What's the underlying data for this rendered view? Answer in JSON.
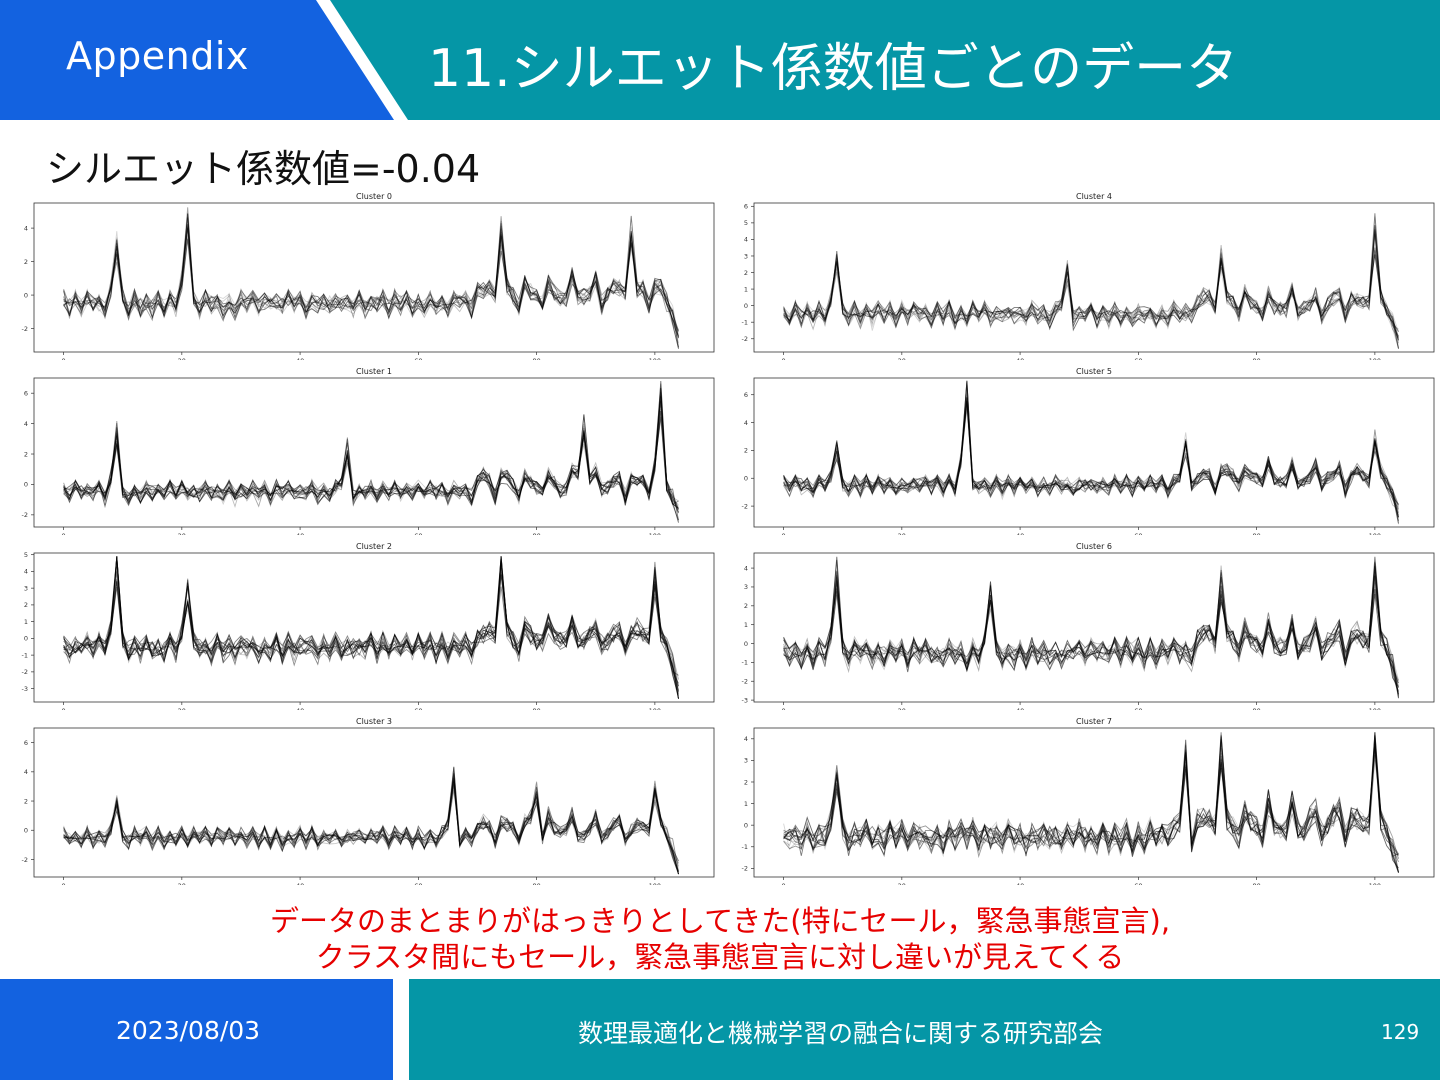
{
  "header": {
    "section": "Appendix",
    "title": "11.シルエット係数値ごとのデータ",
    "left_color": "#1362e0",
    "right_color": "#0596a6"
  },
  "subtitle": "シルエット係数値=-0.04",
  "note": {
    "line1": "データのまとまりがはっきりとしてきた(特にセール，緊急事態宣言),",
    "line2": "クラスタ間にもセール，緊急事態宣言に対し違いが見えてくる",
    "color": "#e60000"
  },
  "footer": {
    "date": "2023/08/03",
    "organization": "数理最適化と機械学習の融合に関する研究部会",
    "page": "129"
  },
  "chart_data": [
    {
      "type": "line",
      "title": "Cluster 0",
      "x_ticks": [
        0,
        20,
        40,
        60,
        80,
        100
      ],
      "y_ticks": [
        -2,
        0,
        2,
        4
      ],
      "xlim": [
        -5,
        110
      ],
      "ylim": [
        -3.4,
        5.5
      ],
      "line_color": "#000000",
      "series_count": 15,
      "points_per_series": 105,
      "spikes": [
        {
          "x": 9,
          "y": 3
        },
        {
          "x": 21,
          "y": 4.2
        },
        {
          "x": 74,
          "y": 3
        },
        {
          "x": 96,
          "y": 3
        },
        {
          "x": 104,
          "y": -2.8
        }
      ],
      "noise": 0.5
    },
    {
      "type": "line",
      "title": "Cluster 4",
      "x_ticks": [
        0,
        20,
        40,
        60,
        80,
        100
      ],
      "y_ticks": [
        -2,
        -1,
        0,
        1,
        2,
        3,
        4,
        5,
        6
      ],
      "xlim": [
        -5,
        110
      ],
      "ylim": [
        -2.8,
        6.2
      ],
      "line_color": "#000000",
      "series_count": 15,
      "points_per_series": 105,
      "spikes": [
        {
          "x": 9,
          "y": 2.8
        },
        {
          "x": 48,
          "y": 2
        },
        {
          "x": 74,
          "y": 2
        },
        {
          "x": 100,
          "y": 3.5
        },
        {
          "x": 104,
          "y": -2.2
        }
      ],
      "noise": 0.45
    },
    {
      "type": "line",
      "title": "Cluster 1",
      "x_ticks": [
        0,
        20,
        40,
        60,
        80,
        100
      ],
      "y_ticks": [
        -2,
        0,
        2,
        4,
        6
      ],
      "xlim": [
        -5,
        110
      ],
      "ylim": [
        -2.8,
        7
      ],
      "line_color": "#000000",
      "series_count": 15,
      "points_per_series": 105,
      "spikes": [
        {
          "x": 9,
          "y": 3.2
        },
        {
          "x": 48,
          "y": 2.2
        },
        {
          "x": 88,
          "y": 3.5
        },
        {
          "x": 101,
          "y": 4.5
        },
        {
          "x": 104,
          "y": -1.8
        }
      ],
      "noise": 0.45
    },
    {
      "type": "line",
      "title": "Cluster 5",
      "x_ticks": [
        0,
        20,
        40,
        60,
        80,
        100
      ],
      "y_ticks": [
        -2,
        0,
        2,
        4,
        6
      ],
      "xlim": [
        -5,
        110
      ],
      "ylim": [
        -3.5,
        7.2
      ],
      "line_color": "#000000",
      "series_count": 15,
      "points_per_series": 105,
      "spikes": [
        {
          "x": 9,
          "y": 2.2
        },
        {
          "x": 31,
          "y": 6.8
        },
        {
          "x": 68,
          "y": 2.5
        },
        {
          "x": 100,
          "y": 1.8
        },
        {
          "x": 104,
          "y": -2.6
        }
      ],
      "noise": 0.45
    },
    {
      "type": "line",
      "title": "Cluster 2",
      "x_ticks": [
        0,
        20,
        40,
        60,
        80,
        100
      ],
      "y_ticks": [
        -3,
        -2,
        -1,
        0,
        1,
        2,
        3,
        4,
        5
      ],
      "xlim": [
        -5,
        110
      ],
      "ylim": [
        -3.8,
        5.1
      ],
      "line_color": "#000000",
      "series_count": 15,
      "points_per_series": 105,
      "spikes": [
        {
          "x": 9,
          "y": 4.5
        },
        {
          "x": 21,
          "y": 2.8
        },
        {
          "x": 74,
          "y": 3.5
        },
        {
          "x": 100,
          "y": 2.8
        },
        {
          "x": 104,
          "y": -3.2
        }
      ],
      "noise": 0.55
    },
    {
      "type": "line",
      "title": "Cluster 6",
      "x_ticks": [
        0,
        20,
        40,
        60,
        80,
        100
      ],
      "y_ticks": [
        -3,
        -2,
        -1,
        0,
        1,
        2,
        3,
        4
      ],
      "xlim": [
        -5,
        110
      ],
      "ylim": [
        -3.1,
        4.8
      ],
      "line_color": "#000000",
      "series_count": 15,
      "points_per_series": 105,
      "spikes": [
        {
          "x": 9,
          "y": 3.5
        },
        {
          "x": 35,
          "y": 2.6
        },
        {
          "x": 74,
          "y": 2.6
        },
        {
          "x": 100,
          "y": 2.8
        },
        {
          "x": 104,
          "y": -2.6
        }
      ],
      "noise": 0.5
    },
    {
      "type": "line",
      "title": "Cluster 3",
      "x_ticks": [
        0,
        20,
        40,
        60,
        80,
        100
      ],
      "y_ticks": [
        -2,
        0,
        2,
        4,
        6
      ],
      "xlim": [
        -5,
        110
      ],
      "ylim": [
        -3.2,
        7
      ],
      "line_color": "#000000",
      "series_count": 15,
      "points_per_series": 105,
      "spikes": [
        {
          "x": 9,
          "y": 1.8
        },
        {
          "x": 66,
          "y": 3.5
        },
        {
          "x": 80,
          "y": 2.5
        },
        {
          "x": 100,
          "y": 2
        },
        {
          "x": 104,
          "y": -2.8
        }
      ],
      "noise": 0.45
    },
    {
      "type": "line",
      "title": "Cluster 7",
      "x_ticks": [
        0,
        20,
        40,
        60,
        80,
        100
      ],
      "y_ticks": [
        -2,
        -1,
        0,
        1,
        2,
        3,
        4
      ],
      "xlim": [
        -5,
        110
      ],
      "ylim": [
        -2.4,
        4.5
      ],
      "line_color": "#000000",
      "series_count": 15,
      "points_per_series": 105,
      "spikes": [
        {
          "x": 9,
          "y": 2.4
        },
        {
          "x": 68,
          "y": 3.2
        },
        {
          "x": 74,
          "y": 3
        },
        {
          "x": 100,
          "y": 3
        },
        {
          "x": 104,
          "y": -2
        }
      ],
      "noise": 0.5
    }
  ]
}
